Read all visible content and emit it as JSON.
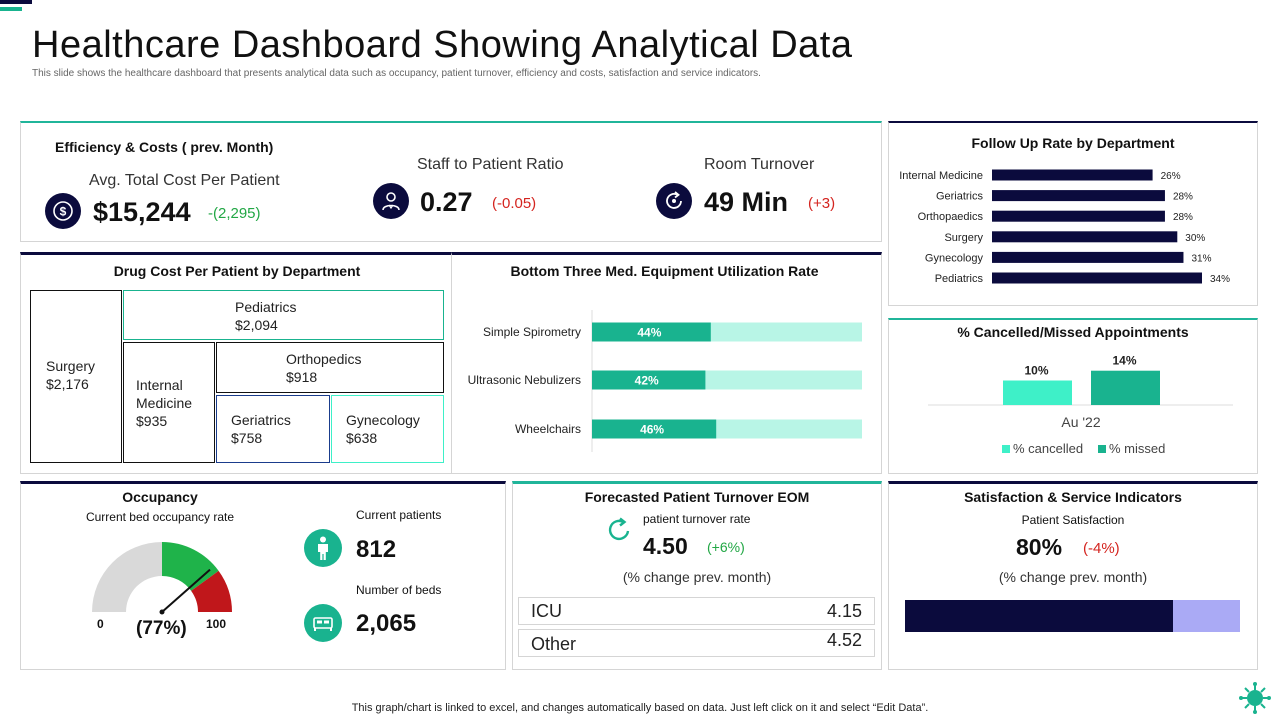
{
  "header": {
    "title": "Healthcare Dashboard Showing Analytical Data",
    "subtitle": "This slide shows the healthcare dashboard that presents analytical data such as occupancy, patient turnover, efficiency and costs, satisfaction and service indicators."
  },
  "efficiency": {
    "title": "Efficiency & Costs ( prev. Month)",
    "cost_label": "Avg. Total Cost Per Patient",
    "cost_value": "$15,244",
    "cost_change": "-(2,295)",
    "ratio_label": "Staff to Patient Ratio",
    "ratio_value": "0.27",
    "ratio_change": "(-0.05)",
    "room_label": "Room Turnover",
    "room_value": "49 Min",
    "room_change": "(+3)"
  },
  "drug_cost": {
    "title": "Drug Cost Per Patient by Department",
    "cells": [
      {
        "name": "Surgery",
        "value": "$2,176"
      },
      {
        "name": "Pediatrics",
        "value": "$2,094"
      },
      {
        "name": "Internal Medicine",
        "value": "$935"
      },
      {
        "name": "Orthopedics",
        "value": "$918"
      },
      {
        "name": "Geriatrics",
        "value": "$758"
      },
      {
        "name": "Gynecology",
        "value": "$638"
      }
    ]
  },
  "equipment": {
    "title": "Bottom Three Med. Equipment Utilization Rate"
  },
  "follow_up": {
    "title": "Follow Up Rate by Department"
  },
  "cancelled": {
    "title": "% Cancelled/Missed Appointments"
  },
  "occupancy": {
    "title": "Occupancy",
    "rate_label": "Current bed occupancy rate",
    "gauge_value": 77,
    "gauge_text": "(77%)",
    "gauge_min": "0",
    "gauge_max": "100",
    "patients_label": "Current patients",
    "patients_value": "812",
    "beds_label": "Number of beds",
    "beds_value": "2,065"
  },
  "turnover": {
    "title": "Forecasted Patient Turnover EOM",
    "rate_label": "patient turnover rate",
    "rate_value": "4.50",
    "rate_change": "(+6%)",
    "note": "(% change prev. month)",
    "rows": [
      {
        "label": "ICU",
        "value": "4.15"
      },
      {
        "label": "Other",
        "value": "4.52"
      }
    ]
  },
  "satisfaction": {
    "title": "Satisfaction & Service Indicators",
    "label": "Patient Satisfaction",
    "value": "80%",
    "change": "(-4%)",
    "note": "(% change prev. month)",
    "bar_fill": 0.8
  },
  "footer": {
    "note": "This graph/chart is linked to excel,  and changes automatically based on data. Just left click on it and select “Edit Data”."
  },
  "colors": {
    "navy": "#0b0b3d",
    "teal": "#19b38f",
    "light_teal": "#b8f5e6",
    "mint": "#3ef0c8",
    "lavender": "#aaaaf5",
    "red": "#c0171b",
    "green": "#1fb34a"
  },
  "chart_data": [
    {
      "type": "treemap",
      "title": "Drug Cost Per Patient by Department",
      "categories": [
        "Surgery",
        "Pediatrics",
        "Internal Medicine",
        "Orthopedics",
        "Geriatrics",
        "Gynecology"
      ],
      "values": [
        2176,
        2094,
        935,
        918,
        758,
        638
      ]
    },
    {
      "type": "bar",
      "orientation": "horizontal",
      "stacked_to": 100,
      "title": "Bottom Three Med. Equipment Utilization Rate",
      "categories": [
        "Simple Spirometry",
        "Ultrasonic Nebulizers",
        "Wheelchairs"
      ],
      "values": [
        44,
        42,
        46
      ],
      "labels": [
        "44%",
        "42%",
        "46%"
      ],
      "xlim": [
        0,
        100
      ]
    },
    {
      "type": "bar",
      "orientation": "horizontal",
      "title": "Follow Up Rate by Department",
      "categories": [
        "Internal Medicine",
        "Geriatrics",
        "Orthopaedics",
        "Surgery",
        "Gynecology",
        "Pediatrics"
      ],
      "values": [
        26,
        28,
        28,
        30,
        31,
        34
      ],
      "labels": [
        "26%",
        "28%",
        "28%",
        "30%",
        "31%",
        "34%"
      ],
      "xlim": [
        0,
        40
      ]
    },
    {
      "type": "bar",
      "title": "% Cancelled/Missed Appointments",
      "categories": [
        "Au '22"
      ],
      "series": [
        {
          "name": "% cancelled",
          "values": [
            10
          ],
          "label": "10%"
        },
        {
          "name": "% missed",
          "values": [
            14
          ],
          "label": "14%"
        }
      ],
      "ylim": [
        0,
        16
      ],
      "legend": "bottom"
    }
  ]
}
